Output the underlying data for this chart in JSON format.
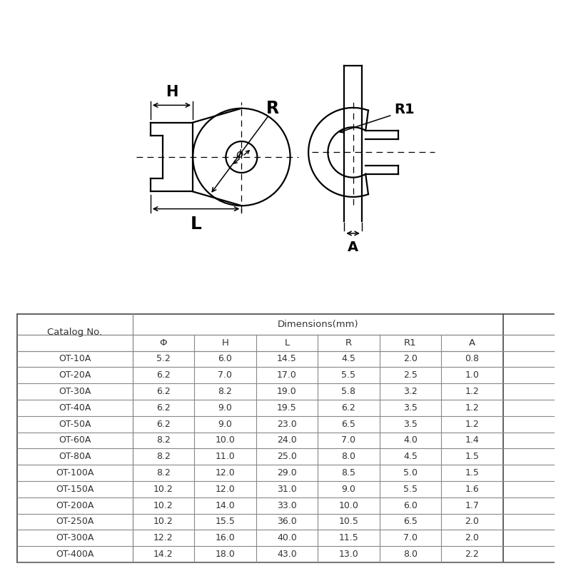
{
  "table_headers": [
    "Catalog No.",
    "Φ",
    "H",
    "L",
    "R",
    "R1",
    "A"
  ],
  "table_data": [
    [
      "OT-10A",
      "5.2",
      "6.0",
      "14.5",
      "4.5",
      "2.0",
      "0.8"
    ],
    [
      "OT-20A",
      "6.2",
      "7.0",
      "17.0",
      "5.5",
      "2.5",
      "1.0"
    ],
    [
      "OT-30A",
      "6.2",
      "8.2",
      "19.0",
      "5.8",
      "3.2",
      "1.2"
    ],
    [
      "OT-40A",
      "6.2",
      "9.0",
      "19.5",
      "6.2",
      "3.5",
      "1.2"
    ],
    [
      "OT-50A",
      "6.2",
      "9.0",
      "23.0",
      "6.5",
      "3.5",
      "1.2"
    ],
    [
      "OT-60A",
      "8.2",
      "10.0",
      "24.0",
      "7.0",
      "4.0",
      "1.4"
    ],
    [
      "OT-80A",
      "8.2",
      "11.0",
      "25.0",
      "8.0",
      "4.5",
      "1.5"
    ],
    [
      "OT-100A",
      "8.2",
      "12.0",
      "29.0",
      "8.5",
      "5.0",
      "1.5"
    ],
    [
      "OT-150A",
      "10.2",
      "12.0",
      "31.0",
      "9.0",
      "5.5",
      "1.6"
    ],
    [
      "OT-200A",
      "10.2",
      "14.0",
      "33.0",
      "10.0",
      "6.0",
      "1.7"
    ],
    [
      "OT-250A",
      "10.2",
      "15.5",
      "36.0",
      "10.5",
      "6.5",
      "2.0"
    ],
    [
      "OT-300A",
      "12.2",
      "16.0",
      "40.0",
      "11.5",
      "7.0",
      "2.0"
    ],
    [
      "OT-400A",
      "14.2",
      "18.0",
      "43.0",
      "13.0",
      "8.0",
      "2.2"
    ]
  ],
  "bg_color": "#ffffff",
  "line_color": "#000000",
  "table_text_color": "#333333"
}
